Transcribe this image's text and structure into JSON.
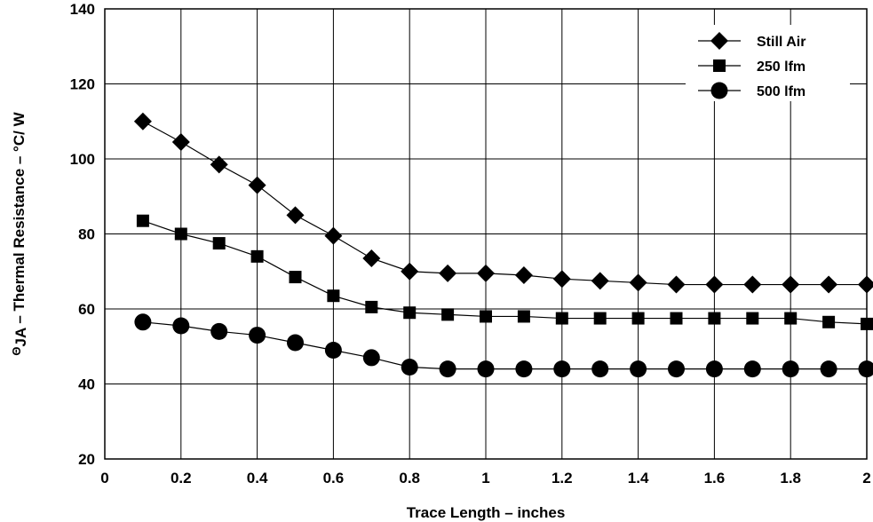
{
  "chart_data": {
    "type": "line",
    "xlabel": "Trace Length – inches",
    "ylabel": "ΘJA – Thermal Resistance – °C/ W",
    "ylabel_parts": {
      "theta": "Θ",
      "subscript": "JA",
      "rest": " – Thermal Resistance – °C/ W"
    },
    "xlim": [
      0,
      2
    ],
    "ylim": [
      20,
      140
    ],
    "xticks": [
      0,
      0.2,
      0.4,
      0.6,
      0.8,
      1,
      1.2,
      1.4,
      1.6,
      1.8,
      2
    ],
    "xtick_labels": [
      "0",
      "0.2",
      "0.4",
      "0.6",
      "0.8",
      "1",
      "1.2",
      "1.4",
      "1.6",
      "1.8",
      "2"
    ],
    "yticks": [
      20,
      40,
      60,
      80,
      100,
      120,
      140
    ],
    "ytick_labels": [
      "20",
      "40",
      "60",
      "80",
      "100",
      "120",
      "140"
    ],
    "grid": true,
    "legend_position": "top-right",
    "x": [
      0.1,
      0.2,
      0.3,
      0.4,
      0.5,
      0.6,
      0.7,
      0.8,
      0.9,
      1.0,
      1.1,
      1.2,
      1.3,
      1.4,
      1.5,
      1.6,
      1.7,
      1.8,
      1.9,
      2.0
    ],
    "series": [
      {
        "name": "Still Air",
        "marker": "diamond",
        "values": [
          110,
          104.5,
          98.5,
          93,
          85,
          79.5,
          73.5,
          70,
          69.5,
          69.5,
          69,
          68,
          67.5,
          67,
          66.5,
          66.5,
          66.5,
          66.5,
          66.5,
          66.5
        ]
      },
      {
        "name": "250 lfm",
        "marker": "square",
        "values": [
          83.5,
          80,
          77.5,
          74,
          68.5,
          63.5,
          60.5,
          59,
          58.5,
          58,
          58,
          57.5,
          57.5,
          57.5,
          57.5,
          57.5,
          57.5,
          57.5,
          56.5,
          56
        ]
      },
      {
        "name": "500 lfm",
        "marker": "circle",
        "values": [
          56.5,
          55.5,
          54,
          53,
          51,
          49,
          47,
          44.5,
          44,
          44,
          44,
          44,
          44,
          44,
          44,
          44,
          44,
          44,
          44,
          44
        ]
      }
    ]
  }
}
